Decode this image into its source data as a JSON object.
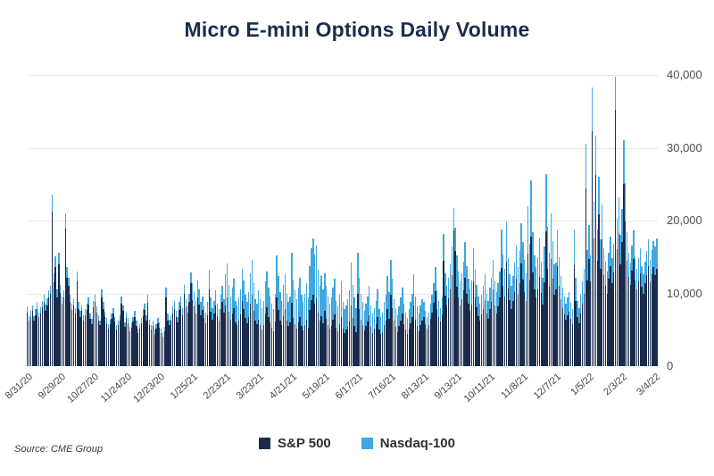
{
  "source_note": "Source: CME Group",
  "colors": {
    "sp500": "#1a2b4c",
    "nasdaq": "#3fa8e0",
    "grid": "#e7e7e7",
    "title": "#1b2d4e"
  },
  "chart_data": {
    "type": "bar",
    "stacked": true,
    "title": "Micro E-mini Options Daily Volume",
    "xlabel": "",
    "ylabel": "",
    "ylim": [
      0,
      40000
    ],
    "grid": true,
    "legend_position": "bottom",
    "y_axis_side": "right",
    "y_ticks": [
      0,
      10000,
      20000,
      30000,
      40000
    ],
    "y_tick_labels": [
      "0",
      "10,000",
      "20,000",
      "30,000",
      "40,000"
    ],
    "x_tick_every": 20,
    "x_tick_labels": [
      "8/31/20",
      "9/29/20",
      "10/27/20",
      "11/24/20",
      "12/23/20",
      "1/25/21",
      "2/23/21",
      "3/23/21",
      "4/21/21",
      "5/19/21",
      "6/17/21",
      "7/16/21",
      "8/13/21",
      "9/13/21",
      "10/11/21",
      "11/8/21",
      "12/7/21",
      "1/5/22",
      "2/3/22",
      "3/4/22"
    ],
    "series": [
      {
        "name": "S&P 500",
        "color": "#1a2b4c",
        "values": [
          7400,
          6300,
          6800,
          7600,
          6200,
          7000,
          7900,
          6700,
          7300,
          8100,
          8800,
          7600,
          8400,
          9400,
          9900,
          21200,
          11500,
          13600,
          9400,
          14000,
          10100,
          8600,
          9400,
          18900,
          12200,
          11000,
          8800,
          7700,
          8300,
          7200,
          11700,
          7900,
          6800,
          7600,
          6300,
          7000,
          7700,
          8500,
          6500,
          5800,
          8100,
          8800,
          7400,
          6300,
          5600,
          9500,
          7900,
          6700,
          5900,
          5200,
          5800,
          6500,
          7200,
          6100,
          5000,
          5600,
          6300,
          8600,
          7600,
          5400,
          6600,
          5900,
          4800,
          5300,
          6100,
          6800,
          5500,
          4600,
          5200,
          5900,
          6900,
          7700,
          6200,
          8700,
          5700,
          5000,
          5500,
          4400,
          5200,
          5900,
          5300,
          4600,
          4000,
          4800,
          9500,
          6300,
          5600,
          6200,
          7200,
          7900,
          6700,
          6000,
          7700,
          8400,
          7000,
          9900,
          8100,
          7400,
          8800,
          11400,
          9100,
          8200,
          7200,
          9400,
          8500,
          7000,
          7700,
          6600,
          5900,
          7000,
          10600,
          7500,
          6400,
          7200,
          8300,
          6900,
          6200,
          7800,
          8800,
          7400,
          8400,
          9400,
          7500,
          6400,
          7200,
          8000,
          6000,
          5600,
          6300,
          7100,
          9000,
          7900,
          6600,
          5900,
          6800,
          8600,
          9800,
          7600,
          6200,
          5800,
          6400,
          5700,
          5000,
          5600,
          7200,
          8100,
          6700,
          6000,
          5300,
          4800,
          6100,
          9400,
          7700,
          6300,
          5600,
          6900,
          7800,
          6200,
          5500,
          6000,
          8700,
          6600,
          5800,
          5200,
          6000,
          6800,
          5500,
          4900,
          5600,
          6400,
          5300,
          7700,
          9100,
          9800,
          8600,
          9300,
          7400,
          6200,
          6900,
          5900,
          7600,
          6500,
          5700,
          5100,
          5500,
          6400,
          7100,
          5300,
          4800,
          5800,
          6800,
          5200,
          4600,
          5000,
          5400,
          6100,
          8400,
          6600,
          5500,
          4700,
          10000,
          7800,
          6400,
          5600,
          4900,
          5500,
          6100,
          7000,
          5400,
          4600,
          5100,
          5800,
          6800,
          5000,
          4400,
          4700,
          5600,
          6300,
          7900,
          6500,
          9800,
          8000,
          6200,
          5400,
          4700,
          5500,
          6300,
          7200,
          5800,
          5000,
          4400,
          5200,
          5900,
          6700,
          8400,
          6400,
          5500,
          4800,
          5600,
          6200,
          6700,
          5800,
          5200,
          5600,
          6500,
          7400,
          8700,
          10300,
          7900,
          6800,
          6100,
          7100,
          14500,
          9700,
          8400,
          9300,
          10600,
          12500,
          18700,
          15800,
          10900,
          9400,
          8400,
          9200,
          10400,
          12200,
          9900,
          8600,
          7600,
          8500,
          11700,
          9500,
          8100,
          6900,
          6200,
          7100,
          7900,
          9100,
          7200,
          6500,
          7800,
          8800,
          10500,
          8400,
          7300,
          8200,
          9400,
          13500,
          11100,
          9600,
          14300,
          10700,
          9100,
          7900,
          8900,
          10200,
          12000,
          9800,
          11400,
          14100,
          11900,
          10200,
          9000,
          15400,
          11800,
          17800,
          12900,
          10600,
          9500,
          10500,
          12300,
          10100,
          8500,
          11500,
          18500,
          13400,
          10900,
          14700,
          12000,
          9800,
          10500,
          13800,
          11100,
          9200,
          8000,
          7100,
          6400,
          7000,
          7500,
          6500,
          5800,
          13900,
          9000,
          6700,
          5900,
          7300,
          8600,
          9900,
          24400,
          11800,
          14700,
          11600,
          32300,
          17600,
          26200,
          14500,
          20800,
          13400,
          17400,
          12500,
          11100,
          10000,
          12000,
          13700,
          11400,
          12900,
          35200,
          16100,
          18300,
          14000,
          17100,
          25000,
          19900,
          14500,
          12300,
          11200,
          13100,
          14700,
          11800,
          10600,
          11700,
          12800,
          10900,
          10000,
          11400,
          12500,
          13700,
          11500,
          12600,
          13600,
          12500,
          13400
        ]
      },
      {
        "name": "Nasdaq-100",
        "color": "#3fa8e0",
        "values": [
          800,
          700,
          800,
          800,
          700,
          800,
          900,
          700,
          800,
          900,
          1000,
          900,
          900,
          1000,
          1100,
          2300,
          1300,
          1500,
          1100,
          1600,
          1100,
          1000,
          1000,
          2100,
          1400,
          1200,
          1000,
          900,
          900,
          800,
          1300,
          900,
          800,
          800,
          700,
          800,
          900,
          900,
          700,
          700,
          900,
          1000,
          800,
          700,
          600,
          1100,
          900,
          700,
          700,
          600,
          600,
          700,
          800,
          700,
          600,
          600,
          700,
          1000,
          800,
          600,
          800,
          700,
          600,
          700,
          700,
          800,
          700,
          600,
          600,
          700,
          900,
          900,
          800,
          1100,
          700,
          600,
          700,
          600,
          600,
          700,
          700,
          600,
          600,
          600,
          1300,
          900,
          800,
          800,
          1000,
          1100,
          900,
          800,
          1100,
          1200,
          1000,
          1300,
          1100,
          1000,
          1200,
          1500,
          2300,
          2000,
          1800,
          2400,
          2100,
          1800,
          1900,
          1600,
          1500,
          1800,
          2600,
          1900,
          1600,
          1800,
          2100,
          1700,
          1600,
          2000,
          2200,
          1800,
          4200,
          4700,
          3700,
          3200,
          3600,
          4000,
          3000,
          2800,
          3100,
          3500,
          4400,
          3900,
          3200,
          2900,
          3400,
          4200,
          4800,
          3800,
          3000,
          2800,
          4000,
          3500,
          3000,
          3400,
          4400,
          4900,
          4100,
          3600,
          3300,
          3000,
          3700,
          5800,
          4700,
          3900,
          3400,
          4300,
          4800,
          3800,
          3300,
          3600,
          6900,
          5200,
          4600,
          4000,
          4800,
          5400,
          4300,
          3900,
          4400,
          5000,
          4100,
          6100,
          7100,
          7700,
          6800,
          7300,
          5800,
          4800,
          5500,
          4700,
          5200,
          4500,
          3900,
          3500,
          3900,
          4400,
          4900,
          3700,
          3400,
          4000,
          4800,
          3600,
          3200,
          3400,
          3800,
          4300,
          5800,
          4600,
          3900,
          3300,
          5600,
          4400,
          3600,
          3200,
          2700,
          3100,
          3500,
          4000,
          3000,
          2600,
          2900,
          3200,
          3800,
          2800,
          2400,
          2700,
          3200,
          3500,
          4500,
          3700,
          4800,
          4000,
          3000,
          2600,
          2300,
          2700,
          3100,
          3600,
          2800,
          2400,
          2200,
          2600,
          2900,
          3300,
          4200,
          3200,
          2700,
          2400,
          2800,
          3000,
          2100,
          1800,
          1600,
          1800,
          2100,
          2400,
          2700,
          3300,
          2500,
          2200,
          1900,
          2300,
          3600,
          3100,
          2600,
          2900,
          3400,
          3900,
          3000,
          3200,
          4300,
          3600,
          3200,
          3600,
          4000,
          4800,
          3900,
          3400,
          3000,
          3300,
          4500,
          3700,
          3100,
          2700,
          2400,
          2700,
          3100,
          3500,
          2800,
          2500,
          3000,
          3400,
          4100,
          3200,
          2900,
          3200,
          3600,
          5300,
          4300,
          3800,
          5600,
          4100,
          3500,
          3100,
          3500,
          4000,
          4600,
          3800,
          4400,
          5500,
          5100,
          4400,
          3800,
          6600,
          5000,
          7700,
          5500,
          4600,
          4100,
          4500,
          5300,
          4300,
          3700,
          4900,
          7900,
          5800,
          4700,
          6300,
          5200,
          4200,
          3700,
          4800,
          3900,
          3200,
          2800,
          2500,
          2200,
          2400,
          2700,
          2300,
          2000,
          4900,
          3200,
          2300,
          2100,
          2500,
          3000,
          3500,
          6100,
          4200,
          4700,
          3600,
          6000,
          5000,
          5500,
          4300,
          5200,
          4000,
          4800,
          3700,
          3300,
          3000,
          3600,
          4100,
          3400,
          3900,
          4500,
          4300,
          4900,
          4000,
          4500,
          6000,
          5300,
          3900,
          3300,
          3000,
          3500,
          3900,
          3200,
          2800,
          3100,
          3400,
          2900,
          2600,
          3000,
          3300,
          3700,
          3100,
          3400,
          3600,
          3900,
          4200
        ]
      }
    ]
  }
}
